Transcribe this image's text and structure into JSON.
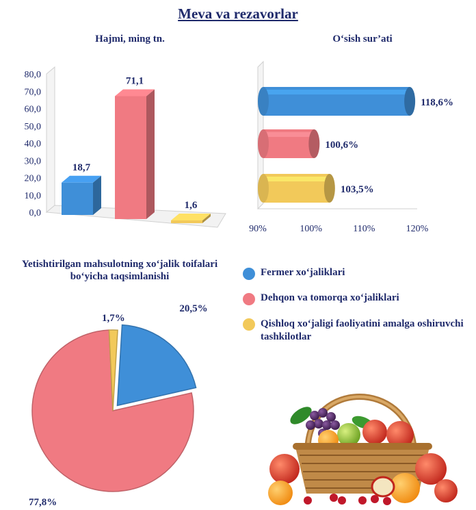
{
  "title": "Meva va rezavorlar",
  "colors": {
    "blue": "#3f8fd8",
    "red": "#f07a82",
    "yellow": "#f2c95a",
    "text": "#1f2a6b"
  },
  "legend": [
    {
      "label": "Fermer xo‘jaliklari",
      "color": "#3f8fd8"
    },
    {
      "label": "Dehqon va tomorqa xo‘jaliklari",
      "color": "#f07a82"
    },
    {
      "label": "Qishloq xo‘jaligi faoliyatini amalga oshiruvchi tashkilotlar",
      "color": "#f2c95a"
    }
  ],
  "decor": {
    "image": "fruit-basket"
  },
  "chart_data": [
    {
      "type": "bar",
      "title": "Hajmi, ming tn.",
      "categories": [
        "Fermer xo‘jaliklari",
        "Dehqon va tomorqa xo‘jaliklari",
        "Qishloq xo‘jaligi faoliyatini amalga oshiruvchi tashkilotlar"
      ],
      "values": [
        18.7,
        71.1,
        1.6
      ],
      "value_labels": [
        "18,7",
        "71,1",
        "1,6"
      ],
      "ylim": [
        0,
        80
      ],
      "yticks": [
        "0,0",
        "10,0",
        "20,0",
        "30,0",
        "40,0",
        "50,0",
        "60,0",
        "70,0",
        "80,0"
      ],
      "colors": [
        "#3f8fd8",
        "#f07a82",
        "#f2c95a"
      ],
      "style": "3d"
    },
    {
      "type": "bar",
      "orientation": "horizontal",
      "title": "O‘sish sur’ati",
      "categories": [
        "Fermer xo‘jaliklari",
        "Dehqon va tomorqa xo‘jaliklari",
        "Qishloq xo‘jaligi faoliyatini amalga oshiruvchi tashkilotlar"
      ],
      "values": [
        118.6,
        100.6,
        103.5
      ],
      "value_labels": [
        "118,6%",
        "100,6%",
        "103,5%"
      ],
      "xlim": [
        90,
        120
      ],
      "xticks": [
        "90%",
        "100%",
        "110%",
        "120%"
      ],
      "colors": [
        "#3f8fd8",
        "#f07a82",
        "#f2c95a"
      ],
      "style": "cylinder"
    },
    {
      "type": "pie",
      "title": "Yetishtirilgan mahsulotning xo‘jalik toifalari bo‘yicha taqsimlanishi",
      "categories": [
        "Fermer xo‘jaliklari",
        "Dehqon va tomorqa xo‘jaliklari",
        "Qishloq xo‘jaligi faoliyatini amalga oshiruvchi tashkilotlar"
      ],
      "values": [
        20.5,
        77.8,
        1.7
      ],
      "value_labels": [
        "20,5%",
        "77,8%",
        "1,7%"
      ],
      "colors": [
        "#3f8fd8",
        "#f07a82",
        "#f2c95a"
      ],
      "exploded": "Fermer xo‘jaliklari"
    }
  ]
}
